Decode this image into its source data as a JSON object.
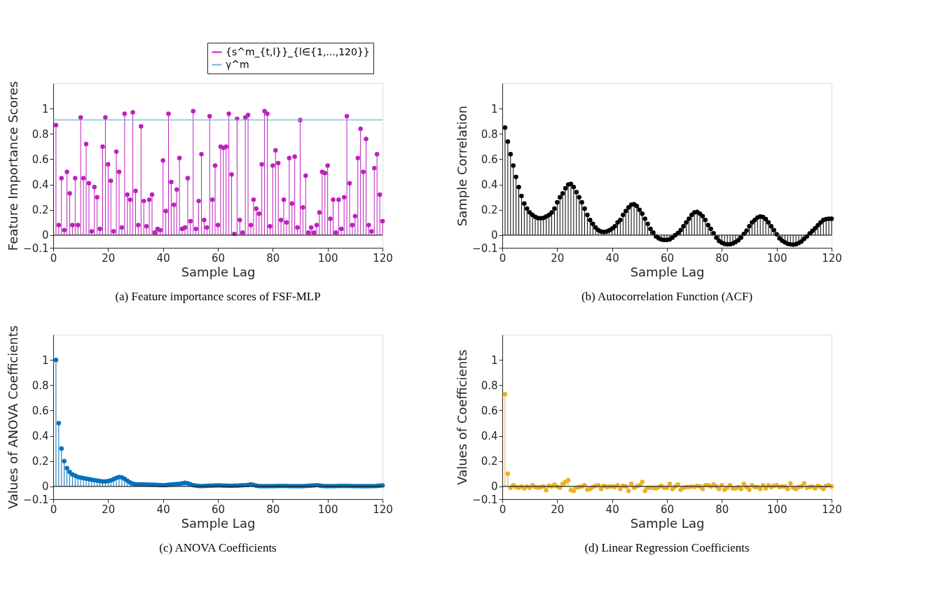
{
  "chart_data": [
    {
      "type": "lollipop",
      "title": "(a) Feature importance scores of FSF-MLP",
      "xlabel": "Sample Lag",
      "ylabel": "Feature Importance Scores",
      "x": [
        1,
        2,
        3,
        4,
        5,
        6,
        7,
        8,
        9,
        10,
        11,
        12,
        13,
        14,
        15,
        16,
        17,
        18,
        19,
        20,
        21,
        22,
        23,
        24,
        25,
        26,
        27,
        28,
        29,
        30,
        31,
        32,
        33,
        34,
        35,
        36,
        37,
        38,
        39,
        40,
        41,
        42,
        43,
        44,
        45,
        46,
        47,
        48,
        49,
        50,
        51,
        52,
        53,
        54,
        55,
        56,
        57,
        58,
        59,
        60,
        61,
        62,
        63,
        64,
        65,
        66,
        67,
        68,
        69,
        70,
        71,
        72,
        73,
        74,
        75,
        76,
        77,
        78,
        79,
        80,
        81,
        82,
        83,
        84,
        85,
        86,
        87,
        88,
        89,
        90,
        91,
        92,
        93,
        94,
        95,
        96,
        97,
        98,
        99,
        100,
        101,
        102,
        103,
        104,
        105,
        106,
        107,
        108,
        109,
        110,
        111,
        112,
        113,
        114,
        115,
        116,
        117,
        118,
        119,
        120
      ],
      "series": [
        {
          "name": "{s^m_{t,l}}_{l∈{1,...,120}}",
          "color": "#bf1fbf",
          "values": [
            0.87,
            0.08,
            0.45,
            0.04,
            0.5,
            0.33,
            0.08,
            0.45,
            0.08,
            0.93,
            0.45,
            0.72,
            0.41,
            0.03,
            0.38,
            0.3,
            0.05,
            0.7,
            0.93,
            0.56,
            0.43,
            0.03,
            0.66,
            0.5,
            0.06,
            0.96,
            0.32,
            0.28,
            0.97,
            0.35,
            0.08,
            0.86,
            0.27,
            0.07,
            0.28,
            0.32,
            0.02,
            0.05,
            0.04,
            0.59,
            0.19,
            0.96,
            0.42,
            0.24,
            0.36,
            0.61,
            0.05,
            0.06,
            0.45,
            0.11,
            0.98,
            0.05,
            0.27,
            0.64,
            0.12,
            0.06,
            0.94,
            0.28,
            0.55,
            0.08,
            0.7,
            0.69,
            0.7,
            0.96,
            0.48,
            0.01,
            0.92,
            0.12,
            0.02,
            0.93,
            0.95,
            0.08,
            0.28,
            0.21,
            0.17,
            0.56,
            0.98,
            0.96,
            0.07,
            0.55,
            0.67,
            0.57,
            0.12,
            0.28,
            0.1,
            0.61,
            0.25,
            0.62,
            0.06,
            0.91,
            0.22,
            0.47,
            0.02,
            0.06,
            0.02,
            0.08,
            0.18,
            0.5,
            0.49,
            0.55,
            0.13,
            0.28,
            0.02,
            0.28,
            0.05,
            0.3,
            0.94,
            0.41,
            0.08,
            0.15,
            0.61,
            0.84,
            0.5,
            0.76,
            0.08,
            0.03,
            0.53,
            0.64,
            0.32,
            0.11
          ]
        }
      ],
      "ref_lines": [
        {
          "axis": "y",
          "value": 0.91,
          "label": "γ^m",
          "color": "#6fb8cc"
        },
        {
          "axis": "y",
          "value": 0,
          "color": "#262626"
        }
      ],
      "xlim": [
        0,
        120
      ],
      "ylim": [
        -0.1,
        1.2
      ],
      "xticks": [
        0,
        20,
        40,
        60,
        80,
        100,
        120
      ],
      "yticks": [
        -0.1,
        0,
        0.2,
        0.4,
        0.6,
        0.8,
        1
      ],
      "marker": "circle",
      "legend": "top right",
      "grid": false
    },
    {
      "type": "lollipop",
      "title": "(b) Autocorrelation Function (ACF)",
      "xlabel": "Sample Lag",
      "ylabel": "Sample Correlation",
      "x": [
        1,
        2,
        3,
        4,
        5,
        6,
        7,
        8,
        9,
        10,
        11,
        12,
        13,
        14,
        15,
        16,
        17,
        18,
        19,
        20,
        21,
        22,
        23,
        24,
        25,
        26,
        27,
        28,
        29,
        30,
        31,
        32,
        33,
        34,
        35,
        36,
        37,
        38,
        39,
        40,
        41,
        42,
        43,
        44,
        45,
        46,
        47,
        48,
        49,
        50,
        51,
        52,
        53,
        54,
        55,
        56,
        57,
        58,
        59,
        60,
        61,
        62,
        63,
        64,
        65,
        66,
        67,
        68,
        69,
        70,
        71,
        72,
        73,
        74,
        75,
        76,
        77,
        78,
        79,
        80,
        81,
        82,
        83,
        84,
        85,
        86,
        87,
        88,
        89,
        90,
        91,
        92,
        93,
        94,
        95,
        96,
        97,
        98,
        99,
        100,
        101,
        102,
        103,
        104,
        105,
        106,
        107,
        108,
        109,
        110,
        111,
        112,
        113,
        114,
        115,
        116,
        117,
        118,
        119,
        120
      ],
      "ref_lines": [
        {
          "axis": "y",
          "value": 0,
          "color": "#262626"
        }
      ],
      "series": [
        {
          "color": "#000000",
          "values": [
            0.85,
            0.74,
            0.64,
            0.55,
            0.46,
            0.38,
            0.31,
            0.25,
            0.21,
            0.18,
            0.16,
            0.145,
            0.135,
            0.134,
            0.137,
            0.147,
            0.16,
            0.18,
            0.21,
            0.26,
            0.3,
            0.33,
            0.37,
            0.4,
            0.405,
            0.38,
            0.34,
            0.3,
            0.26,
            0.21,
            0.16,
            0.12,
            0.09,
            0.06,
            0.04,
            0.028,
            0.024,
            0.028,
            0.038,
            0.052,
            0.07,
            0.1,
            0.12,
            0.16,
            0.19,
            0.22,
            0.24,
            0.245,
            0.23,
            0.2,
            0.17,
            0.13,
            0.09,
            0.05,
            0.02,
            -0.01,
            -0.025,
            -0.035,
            -0.038,
            -0.038,
            -0.033,
            -0.02,
            0.0,
            0.016,
            0.04,
            0.07,
            0.1,
            0.13,
            0.16,
            0.18,
            0.183,
            0.17,
            0.15,
            0.12,
            0.08,
            0.05,
            0.015,
            -0.02,
            -0.046,
            -0.06,
            -0.07,
            -0.072,
            -0.072,
            -0.065,
            -0.054,
            -0.04,
            -0.02,
            0.01,
            0.036,
            0.07,
            0.1,
            0.12,
            0.14,
            0.148,
            0.144,
            0.127,
            0.1,
            0.07,
            0.04,
            0.006,
            -0.025,
            -0.044,
            -0.057,
            -0.068,
            -0.073,
            -0.075,
            -0.072,
            -0.062,
            -0.05,
            -0.03,
            -0.01,
            0.013,
            0.034,
            0.055,
            0.078,
            0.1,
            0.12,
            0.127,
            0.13,
            0.13
          ]
        }
      ],
      "xlim": [
        0,
        120
      ],
      "ylim": [
        -0.1,
        1.2
      ],
      "xticks": [
        0,
        20,
        40,
        60,
        80,
        100,
        120
      ],
      "yticks": [
        -0.1,
        0,
        0.2,
        0.4,
        0.6,
        0.8,
        1
      ],
      "marker": "circle",
      "grid": false
    },
    {
      "type": "lollipop",
      "title": "(c) ANOVA Coefficients",
      "xlabel": "Sample Lag",
      "ylabel": "Values of ANOVA Coefficients",
      "x": [
        1,
        2,
        3,
        4,
        5,
        6,
        7,
        8,
        9,
        10,
        11,
        12,
        13,
        14,
        15,
        16,
        17,
        18,
        19,
        20,
        21,
        22,
        23,
        24,
        25,
        26,
        27,
        28,
        29,
        30,
        31,
        32,
        33,
        34,
        35,
        36,
        37,
        38,
        39,
        40,
        41,
        42,
        43,
        44,
        45,
        46,
        47,
        48,
        49,
        50,
        51,
        52,
        53,
        54,
        55,
        56,
        57,
        58,
        59,
        60,
        61,
        62,
        63,
        64,
        65,
        66,
        67,
        68,
        69,
        70,
        71,
        72,
        73,
        74,
        75,
        76,
        77,
        78,
        79,
        80,
        81,
        82,
        83,
        84,
        85,
        86,
        87,
        88,
        89,
        90,
        91,
        92,
        93,
        94,
        95,
        96,
        97,
        98,
        99,
        100,
        101,
        102,
        103,
        104,
        105,
        106,
        107,
        108,
        109,
        110,
        111,
        112,
        113,
        114,
        115,
        116,
        117,
        118,
        119,
        120
      ],
      "ref_lines": [
        {
          "axis": "y",
          "value": 0,
          "color": "#262626"
        }
      ],
      "series": [
        {
          "color": "#0072bd",
          "values": [
            1.0,
            0.5,
            0.3,
            0.2,
            0.145,
            0.115,
            0.095,
            0.085,
            0.075,
            0.07,
            0.066,
            0.062,
            0.058,
            0.054,
            0.05,
            0.046,
            0.042,
            0.04,
            0.04,
            0.042,
            0.048,
            0.058,
            0.068,
            0.075,
            0.072,
            0.06,
            0.045,
            0.032,
            0.022,
            0.018,
            0.016,
            0.016,
            0.016,
            0.015,
            0.015,
            0.014,
            0.013,
            0.012,
            0.011,
            0.01,
            0.011,
            0.013,
            0.015,
            0.017,
            0.019,
            0.021,
            0.025,
            0.028,
            0.025,
            0.018,
            0.01,
            0.006,
            0.004,
            0.003,
            0.004,
            0.005,
            0.006,
            0.007,
            0.008,
            0.008,
            0.008,
            0.007,
            0.006,
            0.005,
            0.005,
            0.006,
            0.007,
            0.008,
            0.009,
            0.01,
            0.012,
            0.016,
            0.012,
            0.006,
            0.003,
            0.002,
            0.002,
            0.002,
            0.003,
            0.003,
            0.003,
            0.004,
            0.004,
            0.004,
            0.004,
            0.003,
            0.003,
            0.002,
            0.002,
            0.002,
            0.003,
            0.004,
            0.005,
            0.006,
            0.008,
            0.01,
            0.008,
            0.004,
            0.003,
            0.002,
            0.002,
            0.003,
            0.003,
            0.004,
            0.004,
            0.004,
            0.004,
            0.004,
            0.003,
            0.003,
            0.002,
            0.002,
            0.002,
            0.002,
            0.002,
            0.003,
            0.003,
            0.004,
            0.006,
            0.008
          ]
        }
      ],
      "xlim": [
        0,
        120
      ],
      "ylim": [
        -0.1,
        1.2
      ],
      "xticks": [
        0,
        20,
        40,
        60,
        80,
        100,
        120
      ],
      "yticks": [
        -0.1,
        0,
        0.2,
        0.4,
        0.6,
        0.8,
        1
      ],
      "marker": "circle",
      "grid": false
    },
    {
      "type": "lollipop",
      "title": "(d) Linear Regression Coefficients",
      "xlabel": "Sample Lag",
      "ylabel": "Values of Coefficients",
      "x": [
        1,
        2,
        3,
        4,
        5,
        6,
        7,
        8,
        9,
        10,
        11,
        12,
        13,
        14,
        15,
        16,
        17,
        18,
        19,
        20,
        21,
        22,
        23,
        24,
        25,
        26,
        27,
        28,
        29,
        30,
        31,
        32,
        33,
        34,
        35,
        36,
        37,
        38,
        39,
        40,
        41,
        42,
        43,
        44,
        45,
        46,
        47,
        48,
        49,
        50,
        51,
        52,
        53,
        54,
        55,
        56,
        57,
        58,
        59,
        60,
        61,
        62,
        63,
        64,
        65,
        66,
        67,
        68,
        69,
        70,
        71,
        72,
        73,
        74,
        75,
        76,
        77,
        78,
        79,
        80,
        81,
        82,
        83,
        84,
        85,
        86,
        87,
        88,
        89,
        90,
        91,
        92,
        93,
        94,
        95,
        96,
        97,
        98,
        99,
        100,
        101,
        102,
        103,
        104,
        105,
        106,
        107,
        108,
        109,
        110,
        111,
        112,
        113,
        114,
        115,
        116,
        117,
        118,
        119,
        120
      ],
      "ref_lines": [
        {
          "axis": "y",
          "value": 0,
          "color": "#262626"
        }
      ],
      "series": [
        {
          "color": "#edb120",
          "values": [
            0.73,
            0.1,
            -0.01,
            0.01,
            -0.005,
            -0.01,
            0.0,
            -0.015,
            0.0,
            -0.01,
            0.01,
            -0.005,
            -0.01,
            -0.005,
            0.0,
            -0.03,
            0.005,
            0.0,
            0.015,
            0.0,
            -0.01,
            0.02,
            0.035,
            0.05,
            -0.03,
            -0.035,
            -0.01,
            -0.005,
            0.0,
            0.01,
            -0.025,
            -0.02,
            -0.005,
            0.005,
            0.01,
            -0.02,
            0.005,
            -0.005,
            0.0,
            0.0,
            -0.005,
            0.01,
            -0.02,
            0.005,
            0.0,
            -0.035,
            0.02,
            -0.01,
            0.0,
            0.01,
            0.035,
            -0.035,
            -0.01,
            -0.01,
            -0.01,
            -0.015,
            -0.005,
            0.005,
            -0.01,
            -0.01,
            0.02,
            -0.02,
            0.0,
            0.015,
            -0.025,
            -0.01,
            -0.005,
            -0.005,
            0.0,
            -0.005,
            0.005,
            0.0,
            -0.02,
            0.01,
            0.01,
            0.0,
            0.015,
            0.0,
            -0.02,
            0.01,
            -0.025,
            -0.01,
            0.01,
            -0.015,
            -0.015,
            -0.005,
            -0.02,
            0.02,
            -0.005,
            -0.025,
            0.01,
            -0.005,
            -0.005,
            -0.02,
            0.01,
            -0.015,
            0.01,
            -0.005,
            0.005,
            0.01,
            -0.005,
            0.0,
            0.0,
            -0.02,
            0.025,
            -0.01,
            -0.02,
            -0.005,
            0.0,
            0.025,
            -0.01,
            -0.005,
            0.0,
            -0.015,
            0.005,
            -0.005,
            -0.02,
            0.005,
            0.01,
            0.0
          ]
        }
      ],
      "xlim": [
        0,
        120
      ],
      "ylim": [
        -0.1,
        1.2
      ],
      "xticks": [
        0,
        20,
        40,
        60,
        80,
        100,
        120
      ],
      "yticks": [
        -0.1,
        0,
        0.2,
        0.4,
        0.6,
        0.8,
        1
      ],
      "marker": "circle",
      "grid": false
    }
  ]
}
